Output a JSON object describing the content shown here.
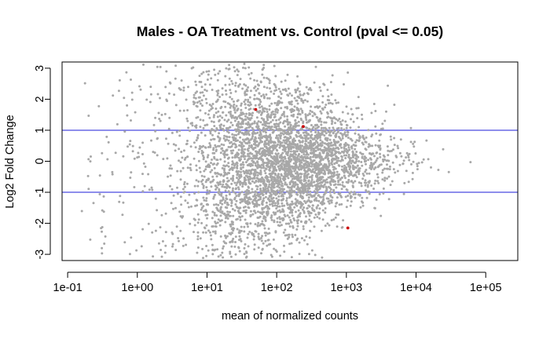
{
  "chart_data": {
    "type": "scatter",
    "title": "Males - OA Treatment vs. Control  (pval <= 0.05)",
    "xlabel": "mean of normalized counts",
    "ylabel": "Log2 Fold Change",
    "x_scale": "log10",
    "xlim": [
      0.1,
      200000
    ],
    "ylim": [
      -3.2,
      3.2
    ],
    "x_ticks": [
      0.1,
      1,
      10,
      100,
      1000,
      10000,
      100000
    ],
    "x_tick_labels": [
      "1e-01",
      "1e+00",
      "1e+01",
      "1e+02",
      "1e+03",
      "1e+04",
      "1e+05"
    ],
    "y_ticks": [
      -3,
      -2,
      -1,
      0,
      1,
      2,
      3
    ],
    "y_tick_labels": [
      "-3",
      "-2",
      "-1",
      "0",
      "1",
      "2",
      "3"
    ],
    "threshold_lines": [
      1,
      -1
    ],
    "grid": false,
    "legend": "none",
    "colors": {
      "not_significant": "#a8a8a8",
      "significant": "#cc0000",
      "threshold_line": "#4a4ae0",
      "axes": "#000000"
    },
    "series": [
      {
        "significant": true,
        "x": [
          50,
          240,
          1050
        ],
        "y": [
          1.67,
          1.12,
          -2.15
        ]
      }
    ]
  }
}
